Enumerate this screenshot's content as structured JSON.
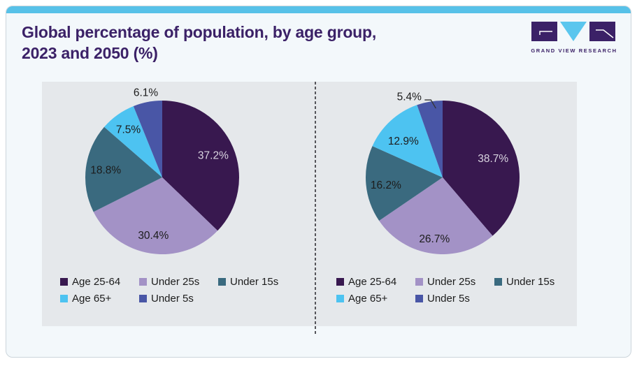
{
  "page": {
    "title_line1": "Global percentage of population, by age group,",
    "title_line2": "2023 and 2050 (%)",
    "brand": {
      "name": "GRAND VIEW RESEARCH"
    },
    "colors": {
      "accent_bar": "#57c1e8",
      "card_bg": "#f3f8fb",
      "panel_bg": "#e5e8eb",
      "title_text": "#3b2167",
      "logo_purple": "#3b2167",
      "logo_blue": "#5bc6ee"
    }
  },
  "chart_data": [
    {
      "type": "pie",
      "year": "2023",
      "direction": "clockwise",
      "start_angle_deg": 0,
      "categories": [
        "Age 25-64",
        "Under 25s",
        "Under 15s",
        "Age 65+",
        "Under 5s"
      ],
      "values": [
        37.2,
        30.4,
        18.8,
        7.5,
        6.1
      ],
      "labels": [
        "37.2%",
        "30.4%",
        "18.8%",
        "7.5%",
        "6.1%"
      ],
      "colors": [
        "#38184f",
        "#a392c6",
        "#3a6a7f",
        "#4dc3f1",
        "#4956a6"
      ],
      "label_colors": [
        "#d9d4e0",
        "#1c1c1c",
        "#1c1c1c",
        "#1c1c1c",
        "#1c1c1c"
      ],
      "label_r": [
        0.72,
        0.77,
        0.74,
        0.76,
        1.12
      ],
      "label_dx": [
        0,
        0,
        0,
        0,
        0
      ],
      "label_dy": [
        0,
        0,
        0,
        0,
        0
      ],
      "leader": [
        false,
        false,
        false,
        false,
        false
      ],
      "legend_position": "bottom",
      "legend_columns": 3
    },
    {
      "type": "pie",
      "year": "2050",
      "direction": "clockwise",
      "start_angle_deg": 0,
      "categories": [
        "Age 25-64",
        "Under 25s",
        "Under 15s",
        "Age 65+",
        "Under 5s"
      ],
      "values": [
        38.7,
        26.7,
        16.2,
        12.9,
        5.4
      ],
      "labels": [
        "38.7%",
        "26.7%",
        "16.2%",
        "12.9%",
        "5.4%"
      ],
      "colors": [
        "#38184f",
        "#a392c6",
        "#3a6a7f",
        "#4dc3f1",
        "#4956a6"
      ],
      "label_colors": [
        "#d9d4e0",
        "#1c1c1c",
        "#1c1c1c",
        "#1c1c1c",
        "#1c1c1c"
      ],
      "label_r": [
        0.7,
        0.81,
        0.74,
        0.7,
        1.06
      ],
      "label_dx": [
        0,
        0,
        0,
        -4,
        -28
      ],
      "label_dy": [
        0,
        0,
        4,
        5,
        0
      ],
      "leader": [
        false,
        false,
        false,
        false,
        true
      ],
      "legend_position": "bottom",
      "legend_columns": 3
    }
  ]
}
